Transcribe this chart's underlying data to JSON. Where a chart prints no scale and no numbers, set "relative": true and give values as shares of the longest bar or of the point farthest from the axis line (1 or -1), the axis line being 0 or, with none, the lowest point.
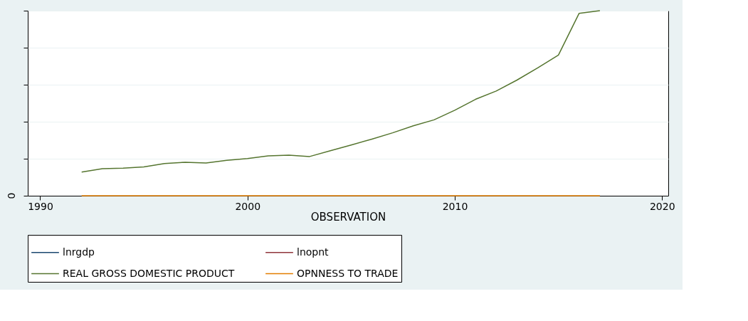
{
  "chart_data": {
    "type": "line",
    "xlabel": "OBSERVATION",
    "relative": true,
    "x": [
      1992,
      1993,
      1994,
      1995,
      1996,
      1997,
      1998,
      1999,
      2000,
      2001,
      2002,
      2003,
      2004,
      2005,
      2006,
      2007,
      2008,
      2009,
      2010,
      2011,
      2012,
      2013,
      2014,
      2015,
      2016,
      2017
    ],
    "xlim": [
      1989.4,
      2020.3
    ],
    "xticks": [
      1990,
      2000,
      2010,
      2020
    ],
    "annotations": [
      "0"
    ],
    "grid": "y",
    "legend": "bottom",
    "marker": "none",
    "line_style": "solid",
    "series": [
      {
        "name": "lnrgdp",
        "color": "#1a476f",
        "values": [
          null,
          null,
          null,
          null,
          null,
          null,
          null,
          null,
          null,
          null,
          null,
          null,
          null,
          null,
          null,
          null,
          null,
          null,
          null,
          null,
          null,
          null,
          null,
          null,
          null,
          null
        ]
      },
      {
        "name": "lnopnt",
        "color": "#90353b",
        "values": [
          null,
          null,
          null,
          null,
          null,
          null,
          null,
          null,
          null,
          null,
          null,
          null,
          null,
          null,
          null,
          null,
          null,
          null,
          null,
          null,
          null,
          null,
          null,
          null,
          null,
          null
        ]
      },
      {
        "name": "REAL GROSS DOMESTIC PRODUCT",
        "color": "#55752f",
        "values": [
          0.128,
          0.146,
          0.149,
          0.156,
          0.174,
          0.181,
          0.177,
          0.191,
          0.201,
          0.215,
          0.219,
          0.212,
          0.243,
          0.274,
          0.306,
          0.34,
          0.378,
          0.41,
          0.462,
          0.521,
          0.566,
          0.625,
          0.691,
          0.76,
          0.986,
          1
        ]
      },
      {
        "name": "OPNNESS TO TRADE",
        "color": "#e37e00",
        "values": [
          0,
          0,
          0,
          0,
          0,
          0,
          0,
          0,
          0,
          0,
          0,
          0,
          0,
          0,
          0,
          0,
          0,
          0,
          0,
          0,
          0,
          0,
          0,
          0,
          0,
          0
        ]
      }
    ]
  }
}
